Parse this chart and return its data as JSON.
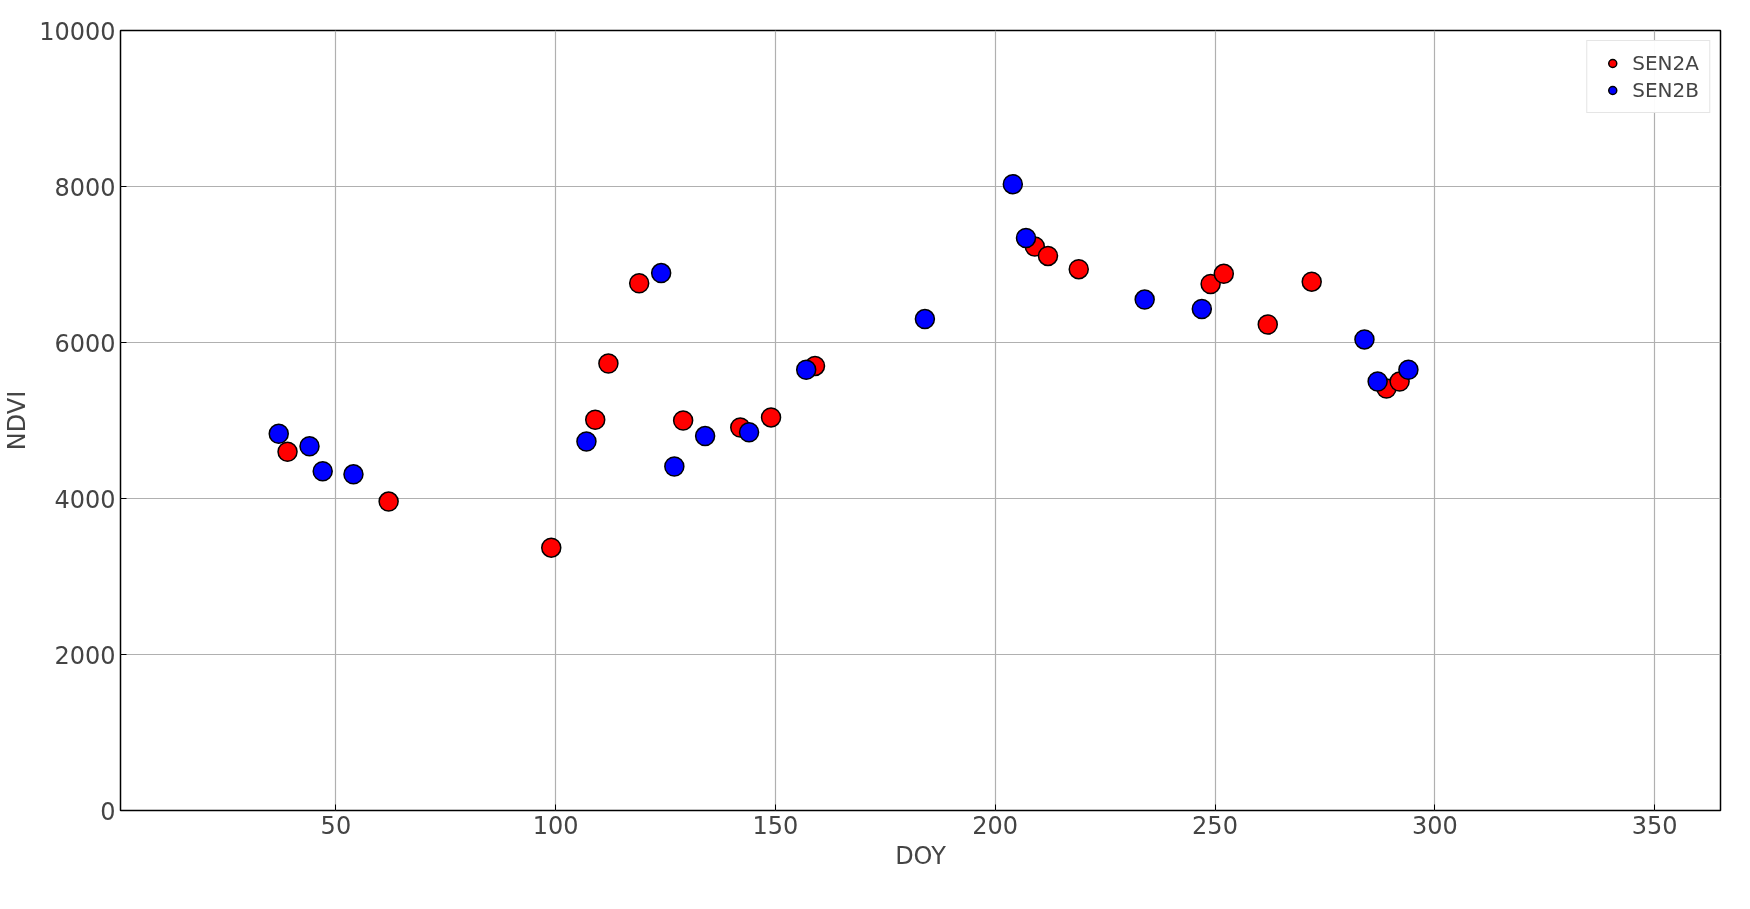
{
  "chart_data": {
    "type": "scatter",
    "xlabel": "DOY",
    "ylabel": "NDVI",
    "xlim": [
      1,
      365
    ],
    "ylim": [
      0,
      10000
    ],
    "xticks": [
      50,
      100,
      150,
      200,
      250,
      300,
      350
    ],
    "yticks": [
      0,
      2000,
      4000,
      6000,
      8000,
      10000
    ],
    "grid": true,
    "legend": "top right",
    "marker": "circle",
    "series": [
      {
        "name": "SEN2A",
        "color": "#ff0000",
        "x": [
          39,
          62,
          99,
          109,
          112,
          119,
          129,
          142,
          149,
          159,
          209,
          212,
          219,
          249,
          252,
          262,
          272,
          289,
          292
        ],
        "values": [
          4600,
          3960,
          3370,
          5010,
          5730,
          6760,
          5000,
          4910,
          5040,
          5700,
          7230,
          7110,
          6940,
          6750,
          6880,
          6230,
          6780,
          5410,
          5500
        ]
      },
      {
        "name": "SEN2B",
        "color": "#0000ff",
        "x": [
          37,
          44,
          47,
          54,
          107,
          124,
          127,
          134,
          144,
          157,
          184,
          204,
          207,
          234,
          247,
          284,
          287,
          294
        ],
        "values": [
          4830,
          4670,
          4350,
          4310,
          4730,
          6890,
          4410,
          4800,
          4850,
          5650,
          6300,
          8030,
          7340,
          6550,
          6430,
          6040,
          5500,
          5650
        ]
      }
    ]
  }
}
